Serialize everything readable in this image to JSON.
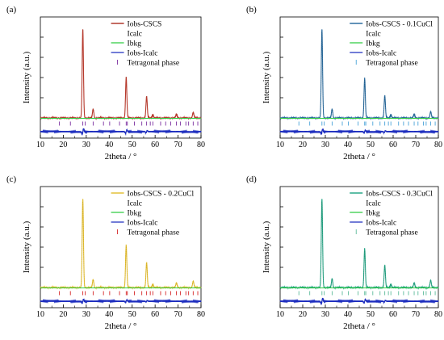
{
  "chart_data": [
    {
      "type": "line",
      "panel_label": "(a)",
      "xlabel": "2theta / °",
      "ylabel": "Intensity (a.u.)",
      "xlim": [
        10,
        80
      ],
      "xticks": [
        10,
        20,
        30,
        40,
        50,
        60,
        70,
        80
      ],
      "legend_position": "top-right",
      "colors": {
        "obs": "#b03a2e",
        "calc": "#c0392b",
        "bkg": "#2ecc40",
        "diff": "#1f2fbf",
        "phase": "#7b2fa0"
      },
      "series": [
        {
          "name": "Iobs-CSCS",
          "style": "line"
        },
        {
          "name": "Icalc",
          "style": "none"
        },
        {
          "name": "Ibkg",
          "style": "line"
        },
        {
          "name": "Iobs-Icalc",
          "style": "line"
        },
        {
          "name": "Tetragonal phase",
          "style": "tick"
        }
      ],
      "peaks": [
        [
          28.5,
          1.0
        ],
        [
          33.0,
          0.1
        ],
        [
          47.4,
          0.46
        ],
        [
          56.3,
          0.24
        ],
        [
          59.0,
          0.04
        ],
        [
          69.3,
          0.04
        ],
        [
          76.6,
          0.06
        ]
      ],
      "diff_spikes": [
        [
          28.5,
          0.3
        ],
        [
          47.4,
          0.2
        ],
        [
          56.3,
          0.12
        ]
      ],
      "phase_ticks": [
        18.3,
        23.1,
        28.5,
        29.5,
        33.0,
        37.5,
        40.2,
        44.5,
        47.4,
        47.9,
        51.0,
        54.2,
        56.3,
        57.9,
        59.0,
        62.4,
        64.6,
        66.8,
        69.3,
        71.0,
        73.4,
        74.6,
        76.6,
        78.6
      ]
    },
    {
      "type": "line",
      "panel_label": "(b)",
      "xlabel": "2theta / °",
      "ylabel": "Intensity (a.u.)",
      "xlim": [
        10,
        80
      ],
      "xticks": [
        10,
        20,
        30,
        40,
        50,
        60,
        70,
        80
      ],
      "legend_position": "top-right",
      "colors": {
        "obs": "#2f6ea0",
        "calc": "#1e5a86",
        "bkg": "#2ecc40",
        "diff": "#1f2fbf",
        "phase": "#4aa3d8"
      },
      "series": [
        {
          "name": "Iobs-CSCS - 0.1CuCl",
          "style": "line"
        },
        {
          "name": "Icalc",
          "style": "none"
        },
        {
          "name": "Ibkg",
          "style": "line"
        },
        {
          "name": "Iobs-Icalc",
          "style": "line"
        },
        {
          "name": "Tetragonal phase",
          "style": "tick"
        }
      ],
      "peaks": [
        [
          28.5,
          1.0
        ],
        [
          33.0,
          0.1
        ],
        [
          47.4,
          0.45
        ],
        [
          56.3,
          0.25
        ],
        [
          59.0,
          0.04
        ],
        [
          69.3,
          0.04
        ],
        [
          76.6,
          0.07
        ]
      ],
      "diff_spikes": [
        [
          28.5,
          0.25
        ],
        [
          47.4,
          0.15
        ],
        [
          56.3,
          0.1
        ]
      ],
      "phase_ticks": [
        18.3,
        23.1,
        28.5,
        29.5,
        33.0,
        37.5,
        40.2,
        44.5,
        47.4,
        47.9,
        51.0,
        54.2,
        56.3,
        57.9,
        59.0,
        62.4,
        64.6,
        66.8,
        69.3,
        71.0,
        73.4,
        74.6,
        76.6,
        78.6
      ]
    },
    {
      "type": "line",
      "panel_label": "(c)",
      "xlabel": "2theta / °",
      "ylabel": "Intensity (a.u.)",
      "xlim": [
        10,
        80
      ],
      "xticks": [
        10,
        20,
        30,
        40,
        50,
        60,
        70,
        80
      ],
      "legend_position": "top-right",
      "colors": {
        "obs": "#e3c03a",
        "calc": "#cfa81f",
        "bkg": "#2ecc40",
        "diff": "#1f2fbf",
        "phase": "#d62728"
      },
      "series": [
        {
          "name": "Iobs-CSCS - 0.2CuCl",
          "style": "line"
        },
        {
          "name": "Icalc",
          "style": "none"
        },
        {
          "name": "Ibkg",
          "style": "line"
        },
        {
          "name": "Iobs-Icalc",
          "style": "line"
        },
        {
          "name": "Tetragonal phase",
          "style": "tick"
        }
      ],
      "peaks": [
        [
          28.5,
          1.0
        ],
        [
          33.0,
          0.09
        ],
        [
          47.4,
          0.48
        ],
        [
          56.3,
          0.28
        ],
        [
          59.0,
          0.04
        ],
        [
          69.3,
          0.05
        ],
        [
          76.6,
          0.07
        ]
      ],
      "diff_spikes": [
        [
          28.5,
          0.2
        ],
        [
          47.4,
          0.15
        ],
        [
          56.3,
          0.08
        ]
      ],
      "phase_ticks": [
        18.3,
        23.1,
        28.5,
        29.5,
        33.0,
        37.5,
        40.2,
        44.5,
        47.4,
        47.9,
        51.0,
        54.2,
        56.3,
        57.9,
        59.0,
        62.4,
        64.6,
        66.8,
        69.3,
        71.0,
        73.4,
        74.6,
        76.6,
        78.6
      ]
    },
    {
      "type": "line",
      "panel_label": "(d)",
      "xlabel": "2theta / °",
      "ylabel": "Intensity (a.u.)",
      "xlim": [
        10,
        80
      ],
      "xticks": [
        10,
        20,
        30,
        40,
        50,
        60,
        70,
        80
      ],
      "legend_position": "top-right",
      "colors": {
        "obs": "#2aa889",
        "calc": "#1f8a6e",
        "bkg": "#2ecc40",
        "diff": "#1f2fbf",
        "phase": "#5dbb9a"
      },
      "series": [
        {
          "name": "Iobs-CSCS - 0.3CuCl",
          "style": "line"
        },
        {
          "name": "Icalc",
          "style": "none"
        },
        {
          "name": "Ibkg",
          "style": "line"
        },
        {
          "name": "Iobs-Icalc",
          "style": "line"
        },
        {
          "name": "Tetragonal phase",
          "style": "tick"
        }
      ],
      "peaks": [
        [
          28.5,
          1.0
        ],
        [
          33.0,
          0.1
        ],
        [
          47.4,
          0.44
        ],
        [
          56.3,
          0.25
        ],
        [
          59.0,
          0.04
        ],
        [
          69.3,
          0.05
        ],
        [
          76.6,
          0.08
        ]
      ],
      "diff_spikes": [
        [
          28.5,
          0.3
        ],
        [
          47.4,
          0.2
        ],
        [
          56.3,
          0.1
        ]
      ],
      "phase_ticks": [
        18.3,
        23.1,
        28.5,
        29.5,
        33.0,
        37.5,
        40.2,
        44.5,
        47.4,
        47.9,
        51.0,
        54.2,
        56.3,
        57.9,
        59.0,
        62.4,
        64.6,
        66.8,
        69.3,
        71.0,
        73.4,
        74.6,
        76.6,
        78.6
      ]
    }
  ]
}
